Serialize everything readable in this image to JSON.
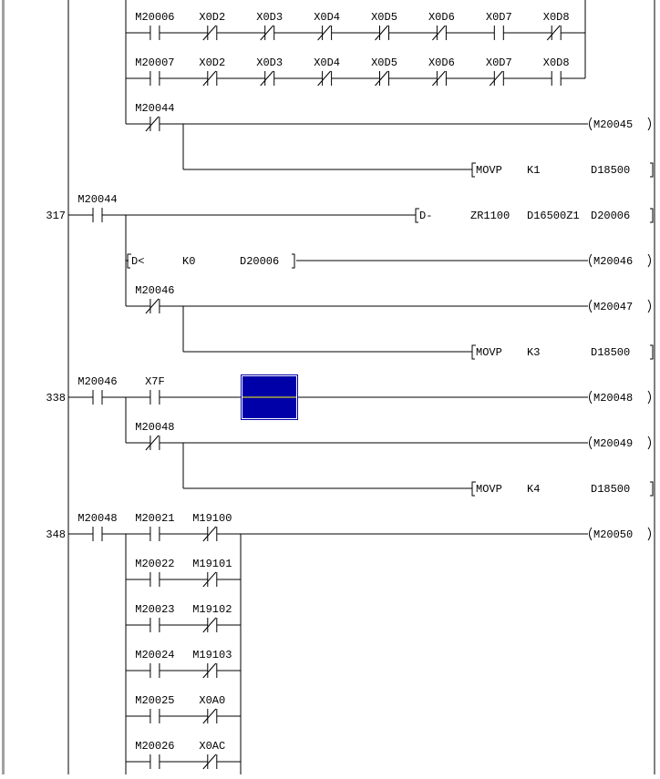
{
  "colors": {
    "line": "#000000",
    "cursor_fill": "#0000a8",
    "cursor_border": "#ffffff",
    "cursor_line": "#ffff00",
    "window_border": "#a0a0a0"
  },
  "rows": [
    {
      "step": "",
      "contacts": [
        {
          "col": 1,
          "label": "M20006",
          "type": "no"
        },
        {
          "col": 2,
          "label": "X0D2",
          "type": "nc"
        },
        {
          "col": 3,
          "label": "X0D3",
          "type": "nc"
        },
        {
          "col": 4,
          "label": "X0D4",
          "type": "nc"
        },
        {
          "col": 5,
          "label": "X0D5",
          "type": "nc"
        },
        {
          "col": 6,
          "label": "X0D6",
          "type": "nc"
        },
        {
          "col": 7,
          "label": "X0D7",
          "type": "no"
        },
        {
          "col": 8,
          "label": "X0D8",
          "type": "nc"
        }
      ]
    },
    {
      "step": "",
      "contacts": [
        {
          "col": 1,
          "label": "M20007",
          "type": "no"
        },
        {
          "col": 2,
          "label": "X0D2",
          "type": "nc"
        },
        {
          "col": 3,
          "label": "X0D3",
          "type": "nc"
        },
        {
          "col": 4,
          "label": "X0D4",
          "type": "nc"
        },
        {
          "col": 5,
          "label": "X0D5",
          "type": "nc"
        },
        {
          "col": 6,
          "label": "X0D6",
          "type": "nc"
        },
        {
          "col": 7,
          "label": "X0D7",
          "type": "nc"
        },
        {
          "col": 8,
          "label": "X0D8",
          "type": "no"
        }
      ]
    },
    {
      "step": "",
      "contacts": [
        {
          "col": 1,
          "label": "M20044",
          "type": "nc"
        }
      ],
      "coil": "M20045"
    },
    {
      "step": "",
      "contacts": [],
      "instruction": {
        "kind": "out",
        "args": [
          "MOVP",
          "K1",
          "D18500"
        ]
      }
    },
    {
      "step": "317",
      "contacts": [
        {
          "col": 0,
          "label": "M20044",
          "type": "no"
        }
      ],
      "instruction": {
        "kind": "dsub",
        "args": [
          "D-",
          "ZR1100",
          "D16500Z1",
          "D20006"
        ]
      }
    },
    {
      "step": "",
      "contacts": [],
      "compare": {
        "args": [
          "D<",
          "K0",
          "D20006"
        ]
      },
      "coil": "M20046"
    },
    {
      "step": "",
      "contacts": [
        {
          "col": 1,
          "label": "M20046",
          "type": "nc"
        }
      ],
      "coil": "M20047"
    },
    {
      "step": "",
      "contacts": [],
      "instruction": {
        "kind": "out",
        "args": [
          "MOVP",
          "K3",
          "D18500"
        ]
      }
    },
    {
      "step": "338",
      "contacts": [
        {
          "col": 0,
          "label": "M20046",
          "type": "no"
        },
        {
          "col": 1,
          "label": "X7F",
          "type": "no"
        }
      ],
      "cursor": true,
      "coil": "M20048"
    },
    {
      "step": "",
      "contacts": [
        {
          "col": 1,
          "label": "M20048",
          "type": "nc"
        }
      ],
      "coil": "M20049"
    },
    {
      "step": "",
      "contacts": [],
      "instruction": {
        "kind": "out",
        "args": [
          "MOVP",
          "K4",
          "D18500"
        ]
      }
    },
    {
      "step": "348",
      "contacts": [
        {
          "col": 0,
          "label": "M20048",
          "type": "no"
        },
        {
          "col": 1,
          "label": "M20021",
          "type": "no"
        },
        {
          "col": 2,
          "label": "M19100",
          "type": "nc"
        }
      ],
      "coil": "M20050"
    },
    {
      "step": "",
      "contacts": [
        {
          "col": 1,
          "label": "M20022",
          "type": "no"
        },
        {
          "col": 2,
          "label": "M19101",
          "type": "nc"
        }
      ]
    },
    {
      "step": "",
      "contacts": [
        {
          "col": 1,
          "label": "M20023",
          "type": "no"
        },
        {
          "col": 2,
          "label": "M19102",
          "type": "nc"
        }
      ]
    },
    {
      "step": "",
      "contacts": [
        {
          "col": 1,
          "label": "M20024",
          "type": "no"
        },
        {
          "col": 2,
          "label": "M19103",
          "type": "nc"
        }
      ]
    },
    {
      "step": "",
      "contacts": [
        {
          "col": 1,
          "label": "M20025",
          "type": "no"
        },
        {
          "col": 2,
          "label": "X0A0",
          "type": "nc"
        }
      ]
    },
    {
      "step": "",
      "contacts": [
        {
          "col": 1,
          "label": "M20026",
          "type": "no"
        },
        {
          "col": 2,
          "label": "X0AC",
          "type": "nc"
        }
      ]
    }
  ]
}
